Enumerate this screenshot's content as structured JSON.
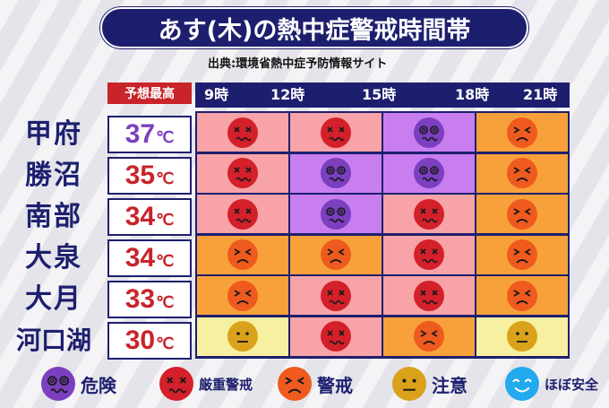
{
  "title": "あす(木)の熱中症警戒時間帯",
  "source": "出典:環境省熱中症予防情報サイト",
  "max_header": "予想最高",
  "unit": "℃",
  "times": [
    "9時",
    "12時",
    "15時",
    "18時",
    "21時"
  ],
  "levels": {
    "kiken": {
      "label": "危険",
      "face_color": "#7b3fbf",
      "cell_color": "#c97ef0"
    },
    "genju": {
      "label": "厳重警戒",
      "face_color": "#d4202a",
      "cell_color": "#f7a3a8"
    },
    "keikai": {
      "label": "警戒",
      "face_color": "#ef5a1e",
      "cell_color": "#f8a13a"
    },
    "chui": {
      "label": "注意",
      "face_color": "#d9a21a",
      "cell_color": "#f7f0a0"
    },
    "anzen": {
      "label": "ほぼ安全",
      "face_color": "#22a9ee",
      "cell_color": "#bfe7fb"
    }
  },
  "rows": [
    {
      "city": "甲府",
      "temp": "37",
      "temp_color": "#7b3fbf",
      "cells": [
        "genju",
        "genju",
        "kiken",
        "keikai"
      ]
    },
    {
      "city": "勝沼",
      "temp": "35",
      "temp_color": "#c8242a",
      "cells": [
        "genju",
        "kiken",
        "kiken",
        "keikai"
      ]
    },
    {
      "city": "南部",
      "temp": "34",
      "temp_color": "#c8242a",
      "cells": [
        "genju",
        "kiken",
        "genju",
        "keikai"
      ]
    },
    {
      "city": "大泉",
      "temp": "34",
      "temp_color": "#c8242a",
      "cells": [
        "keikai",
        "keikai",
        "genju",
        "keikai"
      ]
    },
    {
      "city": "大月",
      "temp": "33",
      "temp_color": "#c8242a",
      "cells": [
        "keikai",
        "genju",
        "genju",
        "keikai"
      ]
    },
    {
      "city": "河口湖",
      "temp": "30",
      "temp_color": "#c8242a",
      "cells": [
        "chui",
        "genju",
        "keikai",
        "chui"
      ]
    }
  ],
  "legend": [
    "kiken",
    "genju",
    "keikai",
    "chui",
    "anzen"
  ]
}
